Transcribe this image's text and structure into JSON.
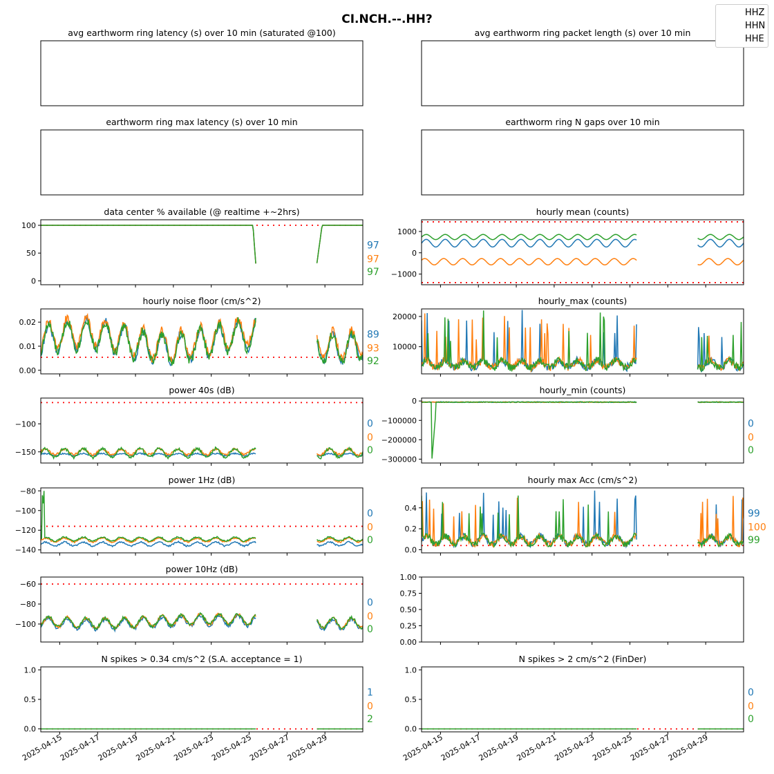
{
  "title": "CI.NCH.--.HH?",
  "legend": [
    "HHZ",
    "HHN",
    "HHE"
  ],
  "colors": {
    "HHZ": "#1f77b4",
    "HHN": "#ff7f0e",
    "HHE": "#2ca02c",
    "threshold": "#ff0000"
  },
  "x_range": [
    "2025-04-14",
    "2025-05-01"
  ],
  "x_ticks": [
    "2025-04-15",
    "2025-04-17",
    "2025-04-19",
    "2025-04-21",
    "2025-04-23",
    "2025-04-25",
    "2025-04-27",
    "2025-04-29"
  ],
  "chart_data": [
    {
      "id": "latency",
      "title": "avg earthworm ring latency (s)   over 10 min (saturated @100)",
      "type": "line",
      "empty": true
    },
    {
      "id": "packet",
      "title": "avg earthworm ring packet length (s)   over 10 min",
      "type": "line",
      "empty": true
    },
    {
      "id": "maxlat",
      "title": "earthworm ring max latency (s)   over 10 min",
      "type": "line",
      "empty": true
    },
    {
      "id": "ngaps",
      "title": "earthworm ring N gaps   over 10 min",
      "type": "line",
      "empty": true
    },
    {
      "id": "avail",
      "title": "data center % available (@ realtime +~2hrs)",
      "type": "line",
      "ylim": [
        -7,
        110
      ],
      "yticks": [
        "0",
        "50",
        "100"
      ],
      "ytick_values": [
        0,
        50,
        100
      ],
      "threshold": [
        100
      ],
      "stats": [
        "97",
        "97",
        "97"
      ]
    },
    {
      "id": "mean",
      "title": "hourly mean (counts)",
      "type": "line",
      "ylim": [
        -1500,
        1550
      ],
      "yticks": [
        "−1000",
        "0",
        "1000"
      ],
      "ytick_values": [
        -1000,
        0,
        1000
      ],
      "threshold": [
        1450,
        -1400
      ],
      "stats": []
    },
    {
      "id": "noise",
      "title": "hourly noise floor (cm/s^2)",
      "type": "line",
      "ylim": [
        -0.0015,
        0.0255
      ],
      "yticks": [
        "0.00",
        "0.01",
        "0.02"
      ],
      "ytick_values": [
        0,
        0.01,
        0.02
      ],
      "threshold": [
        0.0054
      ],
      "stats": [
        "89",
        "93",
        "92"
      ]
    },
    {
      "id": "hmax",
      "title": "hourly_max (counts)",
      "type": "line",
      "ylim": [
        1000,
        22500
      ],
      "yticks": [
        "10000",
        "20000"
      ],
      "ytick_values": [
        10000,
        20000
      ],
      "threshold": [],
      "stats": []
    },
    {
      "id": "p40",
      "title": "power 40s (dB)",
      "type": "line",
      "ylim": [
        -170,
        -54
      ],
      "yticks": [
        "−150",
        "−100"
      ],
      "ytick_values": [
        -150,
        -100
      ],
      "threshold": [
        -62
      ],
      "stats": [
        "0",
        "0",
        "0"
      ]
    },
    {
      "id": "hmin",
      "title": "hourly_min (counts)",
      "type": "line",
      "ylim": [
        -320000,
        15000
      ],
      "yticks": [
        "−300000",
        "−200000",
        "−100000",
        "0"
      ],
      "ytick_values": [
        -300000,
        -200000,
        -100000,
        0
      ],
      "threshold": [],
      "stats": [
        "0",
        "0",
        "0"
      ]
    },
    {
      "id": "p1",
      "title": "power 1Hz (dB)",
      "type": "line",
      "ylim": [
        -143,
        -77
      ],
      "yticks": [
        "−140",
        "−120",
        "−100",
        "−80"
      ],
      "ytick_values": [
        -140,
        -120,
        -100,
        -80
      ],
      "threshold": [
        -116
      ],
      "stats": [
        "0",
        "0",
        "0"
      ]
    },
    {
      "id": "acc",
      "title": "hourly max Acc (cm/s^2)",
      "type": "line",
      "ylim": [
        -0.03,
        0.59
      ],
      "yticks": [
        "0.0",
        "0.2",
        "0.4"
      ],
      "ytick_values": [
        0,
        0.2,
        0.4
      ],
      "threshold": [
        0.04
      ],
      "stats": [
        "99",
        "100",
        "99"
      ]
    },
    {
      "id": "p10",
      "title": "power 10Hz (dB)",
      "type": "line",
      "ylim": [
        -118,
        -53
      ],
      "yticks": [
        "−100",
        "−80",
        "−60"
      ],
      "ytick_values": [
        -100,
        -80,
        -60
      ],
      "threshold": [
        -60
      ],
      "stats": [
        "0",
        "0",
        "0"
      ]
    },
    {
      "id": "blank",
      "title": "",
      "type": "line",
      "empty": true,
      "ylim": [
        0,
        1
      ],
      "yticks": [
        "0.00",
        "0.25",
        "0.50",
        "0.75",
        "1.00"
      ],
      "ytick_values": [
        0,
        0.25,
        0.5,
        0.75,
        1
      ]
    },
    {
      "id": "spk1",
      "title": "N spikes > 0.34 cm/s^2 (S.A. acceptance = 1)",
      "type": "line",
      "ylim": [
        -0.05,
        1.05
      ],
      "yticks": [
        "0.0",
        "0.5",
        "1.0"
      ],
      "ytick_values": [
        0,
        0.5,
        1
      ],
      "threshold": [
        0
      ],
      "stats": [
        "1",
        "0",
        "2"
      ]
    },
    {
      "id": "spk2",
      "title": "N spikes > 2 cm/s^2 (FinDer)",
      "type": "line",
      "ylim": [
        -0.05,
        1.05
      ],
      "yticks": [
        "0.0",
        "0.5",
        "1.0"
      ],
      "ytick_values": [
        0,
        0.5,
        1
      ],
      "threshold": [
        0
      ],
      "stats": [
        "0",
        "0",
        "0"
      ]
    }
  ]
}
